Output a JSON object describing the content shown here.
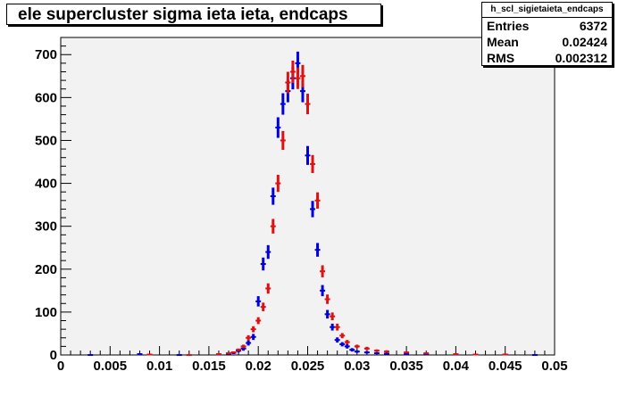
{
  "title": "ele supercluster sigma ieta ieta, endcaps",
  "stats": {
    "name": "h_scl_sigietaieta_endcaps",
    "rows": [
      {
        "label": "Entries",
        "value": "6372"
      },
      {
        "label": "Mean",
        "value": "0.02424"
      },
      {
        "label": "RMS",
        "value": "0.002312"
      }
    ]
  },
  "chart_data": {
    "type": "scatter",
    "title": "ele supercluster sigma ieta ieta, endcaps",
    "xlabel": "",
    "ylabel": "",
    "xlim": [
      0,
      0.05
    ],
    "ylim": [
      0,
      740
    ],
    "x_ticks": [
      "0",
      "0.005",
      "0.01",
      "0.015",
      "0.02",
      "0.025",
      "0.03",
      "0.035",
      "0.04",
      "0.045",
      "0.05"
    ],
    "y_ticks": [
      "0",
      "100",
      "200",
      "300",
      "400",
      "500",
      "600",
      "700"
    ],
    "grid": false,
    "colors": {
      "blue": "#0000dd",
      "red": "#dd1111",
      "frame_bg": "#f2f2f2"
    },
    "series": [
      {
        "color": "#0000dd",
        "x": [
          0.003,
          0.008,
          0.012,
          0.016,
          0.017,
          0.0175,
          0.018,
          0.0185,
          0.019,
          0.0195,
          0.02,
          0.0205,
          0.021,
          0.0215,
          0.022,
          0.0225,
          0.023,
          0.0235,
          0.024,
          0.0245,
          0.025,
          0.0255,
          0.026,
          0.0265,
          0.027,
          0.0275,
          0.028,
          0.0285,
          0.029,
          0.0295,
          0.03,
          0.031,
          0.032,
          0.033,
          0.035,
          0.037,
          0.04,
          0.045,
          0.048
        ],
        "y": [
          0,
          2,
          0,
          1,
          3,
          5,
          10,
          15,
          28,
          42,
          125,
          212,
          240,
          370,
          530,
          585,
          615,
          645,
          680,
          615,
          465,
          340,
          245,
          150,
          95,
          65,
          35,
          25,
          20,
          12,
          8,
          6,
          4,
          3,
          2,
          2,
          1,
          1,
          0
        ],
        "err": [
          0,
          2,
          0,
          1,
          2,
          3,
          4,
          5,
          6,
          7,
          12,
          15,
          16,
          20,
          24,
          25,
          26,
          26,
          27,
          26,
          22,
          19,
          16,
          13,
          10,
          8,
          6,
          5,
          5,
          4,
          3,
          3,
          2,
          2,
          1,
          1,
          1,
          1,
          0
        ]
      },
      {
        "color": "#dd1111",
        "x": [
          0.009,
          0.013,
          0.016,
          0.017,
          0.0175,
          0.018,
          0.0185,
          0.019,
          0.0195,
          0.02,
          0.0205,
          0.021,
          0.0215,
          0.022,
          0.0225,
          0.023,
          0.0235,
          0.024,
          0.0245,
          0.025,
          0.0255,
          0.026,
          0.0265,
          0.027,
          0.0275,
          0.028,
          0.0285,
          0.029,
          0.03,
          0.031,
          0.032,
          0.033,
          0.035,
          0.037,
          0.04,
          0.042,
          0.045
        ],
        "y": [
          1,
          0,
          2,
          4,
          6,
          12,
          20,
          40,
          60,
          80,
          112,
          155,
          300,
          400,
          500,
          635,
          660,
          645,
          650,
          585,
          445,
          360,
          195,
          130,
          90,
          65,
          45,
          30,
          20,
          15,
          10,
          8,
          6,
          4,
          2,
          1,
          1
        ],
        "err": [
          1,
          0,
          1,
          2,
          2,
          3,
          4,
          6,
          7,
          8,
          10,
          12,
          17,
          20,
          22,
          25,
          26,
          25,
          26,
          24,
          21,
          19,
          14,
          11,
          9,
          8,
          6,
          5,
          4,
          4,
          3,
          3,
          2,
          2,
          1,
          1,
          1
        ]
      }
    ]
  }
}
